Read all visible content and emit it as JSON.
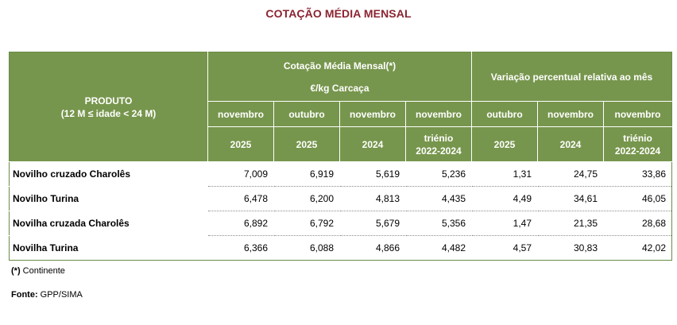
{
  "title": "COTAÇÃO MÉDIA MENSAL",
  "header": {
    "produto": "PRODUTO",
    "produto_sub": "(12 M ≤ idade < 24 M)",
    "group1_line1": "Cotação Média Mensal(*)",
    "group1_line2": "€/kg Carcaça",
    "group2": "Variação percentual relativa  ao mês",
    "cols": [
      {
        "month": "novembro",
        "year": "2025"
      },
      {
        "month": "outubro",
        "year": "2025"
      },
      {
        "month": "novembro",
        "year": "2024"
      },
      {
        "month": "novembro",
        "year": "triénio",
        "year2": "2022-2024"
      },
      {
        "month": "outubro",
        "year": "2025"
      },
      {
        "month": "novembro",
        "year": "2024"
      },
      {
        "month": "novembro",
        "year": "triénio",
        "year2": "2022-2024"
      }
    ]
  },
  "rows": [
    {
      "produto": "Novilho  cruzado Charolês",
      "values": [
        "7,009",
        "6,919",
        "5,619",
        "5,236",
        "1,31",
        "24,75",
        "33,86"
      ]
    },
    {
      "produto": "Novilho Turina",
      "values": [
        "6,478",
        "6,200",
        "4,813",
        "4,435",
        "4,49",
        "34,61",
        "46,05"
      ]
    },
    {
      "produto": "Novilha cruzada Charolês",
      "values": [
        "6,892",
        "6,792",
        "5,679",
        "5,356",
        "1,47",
        "21,35",
        "28,68"
      ]
    },
    {
      "produto": "Novilha Turina",
      "values": [
        "6,366",
        "6,088",
        "4,866",
        "4,482",
        "4,57",
        "30,83",
        "42,02"
      ]
    }
  ],
  "notes": {
    "continente_mark": "(*)",
    "continente": " Continente",
    "fonte_label": "Fonte:",
    "fonte_value": " GPP/SIMA"
  },
  "colors": {
    "header_bg": "#77964d",
    "title": "#8b2431"
  }
}
